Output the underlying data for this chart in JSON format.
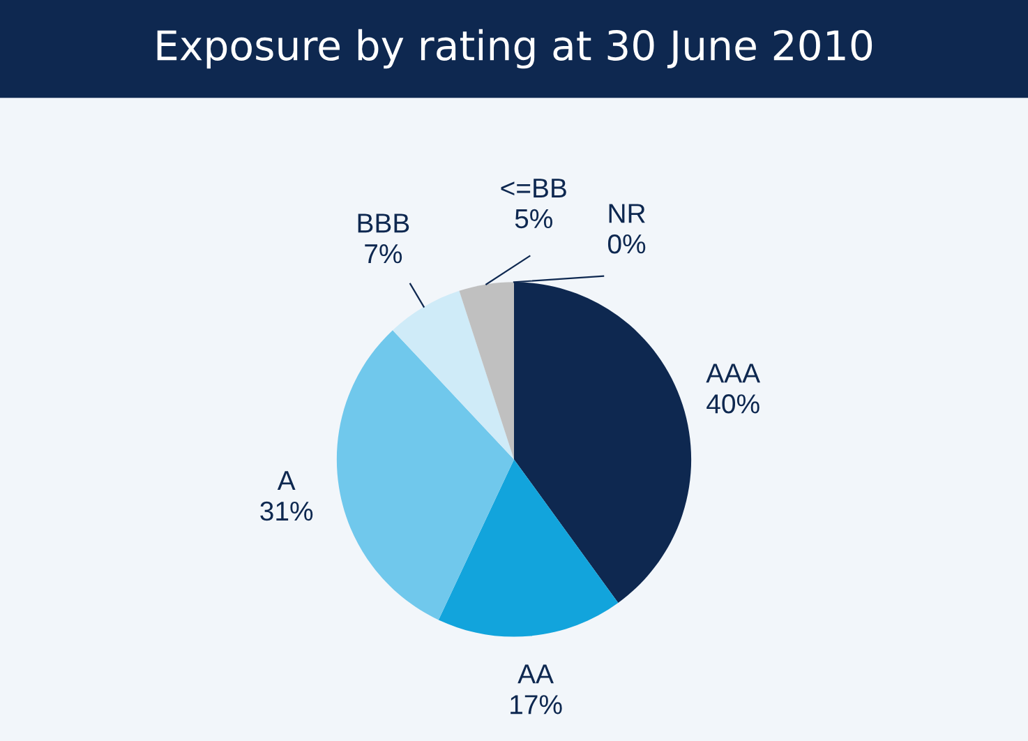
{
  "chart_data": {
    "type": "pie",
    "title": "Exposure by rating at 30 June 2010",
    "categories": [
      "AAA",
      "AA",
      "A",
      "BBB",
      "<=BB",
      "NR"
    ],
    "values": [
      40,
      17,
      31,
      7,
      5,
      0
    ],
    "value_labels": [
      "40%",
      "17%",
      "31%",
      "7%",
      "5%",
      "0%"
    ],
    "colors": [
      "#0e2850",
      "#12a4dc",
      "#70c8ec",
      "#cfebf8",
      "#c0c0c0",
      "#8c8c8c"
    ],
    "legend": false
  }
}
